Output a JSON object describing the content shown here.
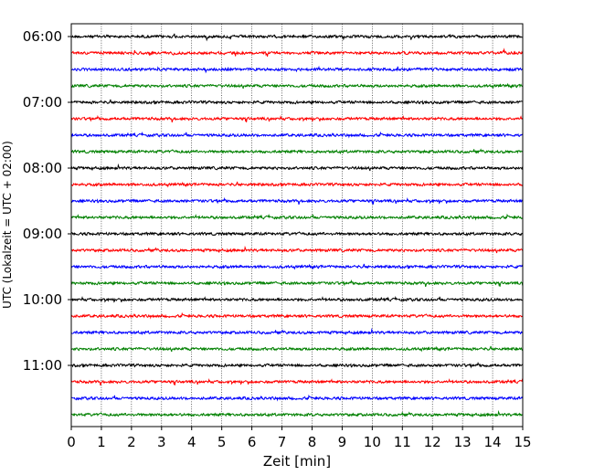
{
  "chart_data": {
    "type": "line",
    "subtype": "seismic-helicorder",
    "xlabel": "Zeit  [min]",
    "ylabel": "UTC (Lokalzeit = UTC + 02:00)",
    "xlim": [
      0,
      15
    ],
    "x_ticks": [
      0,
      1,
      2,
      3,
      4,
      5,
      6,
      7,
      8,
      9,
      10,
      11,
      12,
      13,
      14,
      15
    ],
    "x_tick_labels": [
      "0",
      "1",
      "2",
      "3",
      "4",
      "5",
      "6",
      "7",
      "8",
      "9",
      "10",
      "11",
      "12",
      "13",
      "14",
      "15"
    ],
    "grid": "vertical dotted lines at each minute",
    "trace_interval_minutes": 15,
    "trace_start_times": [
      "06:00",
      "06:15",
      "06:30",
      "06:45",
      "07:00",
      "07:15",
      "07:30",
      "07:45",
      "08:00",
      "08:15",
      "08:30",
      "08:45",
      "09:00",
      "09:15",
      "09:30",
      "09:45",
      "10:00",
      "10:15",
      "10:30",
      "10:45",
      "11:00",
      "11:15",
      "11:30",
      "11:45"
    ],
    "y_tick_labels": [
      "06:00",
      "07:00",
      "08:00",
      "09:00",
      "10:00",
      "11:00"
    ],
    "trace_colors": [
      "#000000",
      "#ff0000",
      "#0000ff",
      "#008000"
    ],
    "signal": "low-amplitude background noise on every trace"
  }
}
